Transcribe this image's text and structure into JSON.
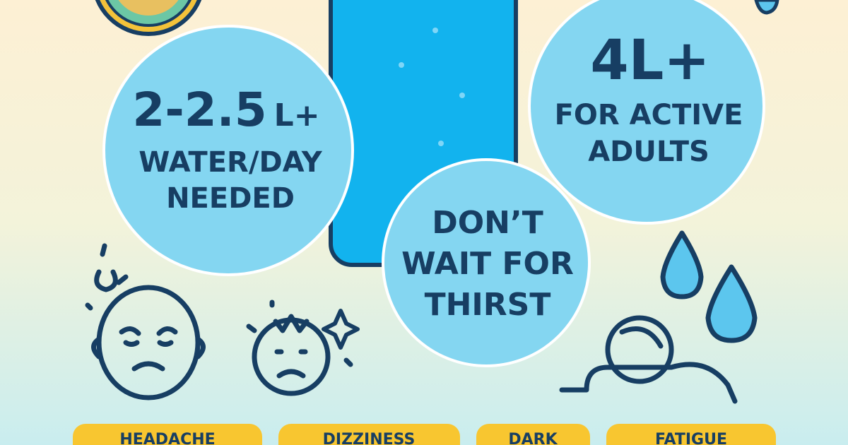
{
  "stats": [
    {
      "value": "2-2.5",
      "unit": "L+",
      "label_lines": [
        "WATER/DAY",
        "NEEDED"
      ]
    },
    {
      "value": "4L+",
      "label_lines": [
        "FOR ACTIVE",
        "ADULTS"
      ]
    }
  ],
  "tip_lines": [
    "DON’T",
    "WAIT FOR",
    "THIRST"
  ],
  "symptoms": [
    "HEADACHE",
    "DIZZINESS",
    "DARK",
    "FATIGUE"
  ]
}
